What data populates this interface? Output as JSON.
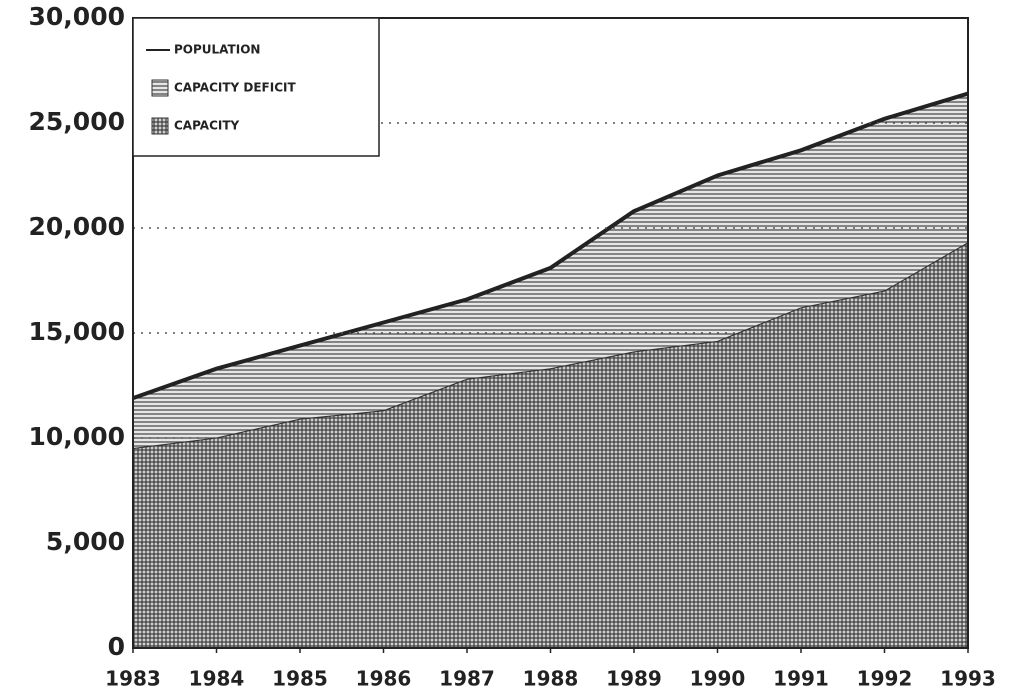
{
  "chart_data": {
    "type": "stacked-area",
    "x": [
      1983,
      1984,
      1985,
      1986,
      1987,
      1988,
      1989,
      1990,
      1991,
      1992,
      1993
    ],
    "series": [
      {
        "name": "POPULATION",
        "kind": "line",
        "color": "#222222",
        "values": [
          11900,
          13300,
          14400,
          15500,
          16600,
          18100,
          20800,
          22500,
          23700,
          25200,
          26400
        ]
      },
      {
        "name": "CAPACITY DEFICIT",
        "kind": "area",
        "pattern": "horizontal",
        "color": "#333333",
        "values": [
          2400,
          3300,
          3500,
          4200,
          3800,
          4800,
          6700,
          7900,
          7500,
          8200,
          7100
        ]
      },
      {
        "name": "CAPACITY",
        "kind": "area",
        "pattern": "crosshatch",
        "color": "#333333",
        "values": [
          9500,
          10000,
          10900,
          11300,
          12800,
          13300,
          14100,
          14600,
          16200,
          17000,
          19300
        ]
      }
    ],
    "stack_order": [
      2,
      1
    ],
    "xlim": [
      1983,
      1993
    ],
    "xticks": [
      1983,
      1984,
      1985,
      1986,
      1987,
      1988,
      1989,
      1990,
      1991,
      1992,
      1993
    ],
    "ylim": [
      0,
      30000
    ],
    "yticks": [
      0,
      {
        "value": 5000,
        "label": "5,000"
      },
      {
        "value": 10000,
        "label": "10,000"
      },
      {
        "value": 15000,
        "label": "15,000"
      },
      {
        "value": 20000,
        "label": "20,000"
      },
      {
        "value": 25000,
        "label": "25,000"
      },
      {
        "value": 30000,
        "label": "30,000"
      }
    ],
    "grid": true,
    "legend": "upper left"
  }
}
